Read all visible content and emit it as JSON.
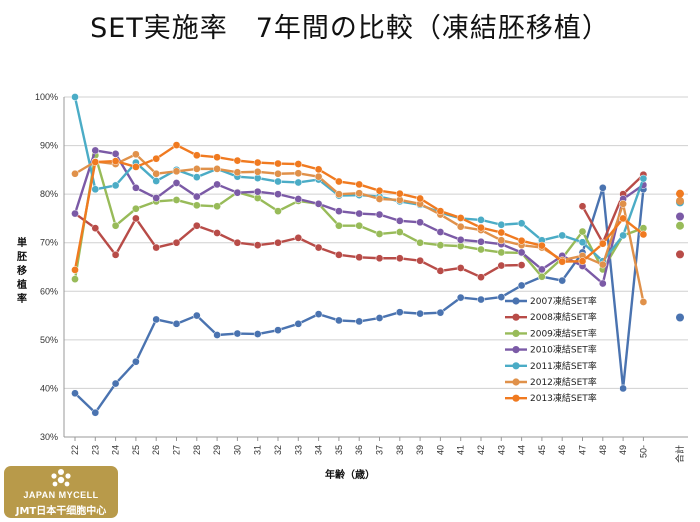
{
  "title": "SET実施率　7年間の比較（凍結胚移植）",
  "badge": {
    "line1": "JAPAN MYCELL",
    "line2": "JMT日本干细胞中心"
  },
  "chart_data": {
    "type": "line",
    "title": "SET実施率　7年間の比較（凍結胚移植）",
    "xlabel": "年齢（歳）",
    "ylabel": "単胚移植率",
    "ylim": [
      30,
      100
    ],
    "yticks": [
      "30%",
      "40%",
      "50%",
      "60%",
      "70%",
      "80%",
      "90%",
      "100%"
    ],
    "categories": [
      "22",
      "23",
      "24",
      "25",
      "26",
      "27",
      "28",
      "29",
      "30",
      "31",
      "32",
      "33",
      "34",
      "35",
      "36",
      "37",
      "38",
      "39",
      "40",
      "41",
      "42",
      "43",
      "44",
      "45",
      "46",
      "47",
      "48",
      "49",
      "50-"
    ],
    "total_label": "合計",
    "grid": true,
    "legend_position": "right",
    "series": [
      {
        "name": "2007凍結SET率",
        "color": "#4a73b0",
        "values": [
          39,
          35,
          41,
          45.5,
          54.2,
          53.3,
          55,
          51,
          51.3,
          51.2,
          52,
          53.3,
          55.3,
          54,
          53.8,
          54.5,
          55.7,
          55.4,
          55.6,
          58.7,
          58.3,
          58.8,
          61.2,
          63,
          62.2,
          68,
          81.3,
          40,
          81
        ],
        "total": 54.6
      },
      {
        "name": "2008凍結SET率",
        "color": "#b84c48",
        "values": [
          76,
          73,
          67.5,
          75,
          69,
          70,
          73.5,
          72,
          70,
          69.5,
          70,
          71,
          69,
          67.5,
          67,
          66.8,
          66.8,
          66.3,
          64.2,
          64.8,
          62.9,
          65.3,
          65.4,
          null,
          null,
          77.5,
          70,
          80,
          84
        ],
        "total": 67.6
      },
      {
        "name": "2009凍結SET率",
        "color": "#98bb59",
        "values": [
          62.5,
          88,
          73.5,
          77,
          78.5,
          78.8,
          77.7,
          77.5,
          80.4,
          79.2,
          76.5,
          78.6,
          78,
          73.5,
          73.5,
          71.8,
          72.2,
          70,
          69.5,
          69.3,
          68.6,
          68,
          67.9,
          63,
          66.8,
          72.3,
          64.5,
          71.5,
          73
        ],
        "total": 73.5
      },
      {
        "name": "2010凍結SET率",
        "color": "#7b5aa6",
        "values": [
          76,
          89,
          88.3,
          81.3,
          79.2,
          82.3,
          79.5,
          82,
          80.3,
          80.5,
          80,
          79,
          78,
          76.5,
          76,
          75.8,
          74.5,
          74.2,
          72.2,
          70.6,
          70.2,
          69.7,
          68,
          64.5,
          67.3,
          65.2,
          61.6,
          79,
          81.9
        ],
        "total": 75.4
      },
      {
        "name": "2011凍結SET率",
        "color": "#4bacc6",
        "values": [
          100,
          81,
          81.8,
          86.5,
          82.7,
          85,
          83.5,
          85.2,
          83.6,
          83.3,
          82.6,
          82.4,
          83,
          79.7,
          79.8,
          79.5,
          78.5,
          77.8,
          76.2,
          75,
          74.7,
          73.7,
          74,
          70.5,
          71.5,
          70.1,
          66.2,
          71.5,
          83.2
        ],
        "total": 78.3
      },
      {
        "name": "2012凍結SET率",
        "color": "#e0914a",
        "values": [
          84.2,
          86.7,
          86.2,
          88.2,
          84.2,
          84.7,
          85.2,
          85.2,
          84.5,
          84.6,
          84.2,
          84.3,
          83.6,
          80,
          80.2,
          79,
          78.8,
          78,
          75.8,
          73.3,
          72.6,
          70.5,
          69.5,
          69,
          66.4,
          67.3,
          65.5,
          78,
          57.8
        ],
        "total": 78.6
      },
      {
        "name": "2013凍結SET率",
        "color": "#f07a20",
        "values": [
          64.4,
          86.6,
          86.8,
          85.6,
          87.3,
          90.1,
          88,
          87.6,
          86.9,
          86.5,
          86.3,
          86.2,
          85.1,
          82.6,
          82,
          80.7,
          80.1,
          79.1,
          76.5,
          75.1,
          73.1,
          72.1,
          70.4,
          69.4,
          66.1,
          66.2,
          69.8,
          75,
          71.7
        ],
        "total": 80.1
      }
    ]
  }
}
